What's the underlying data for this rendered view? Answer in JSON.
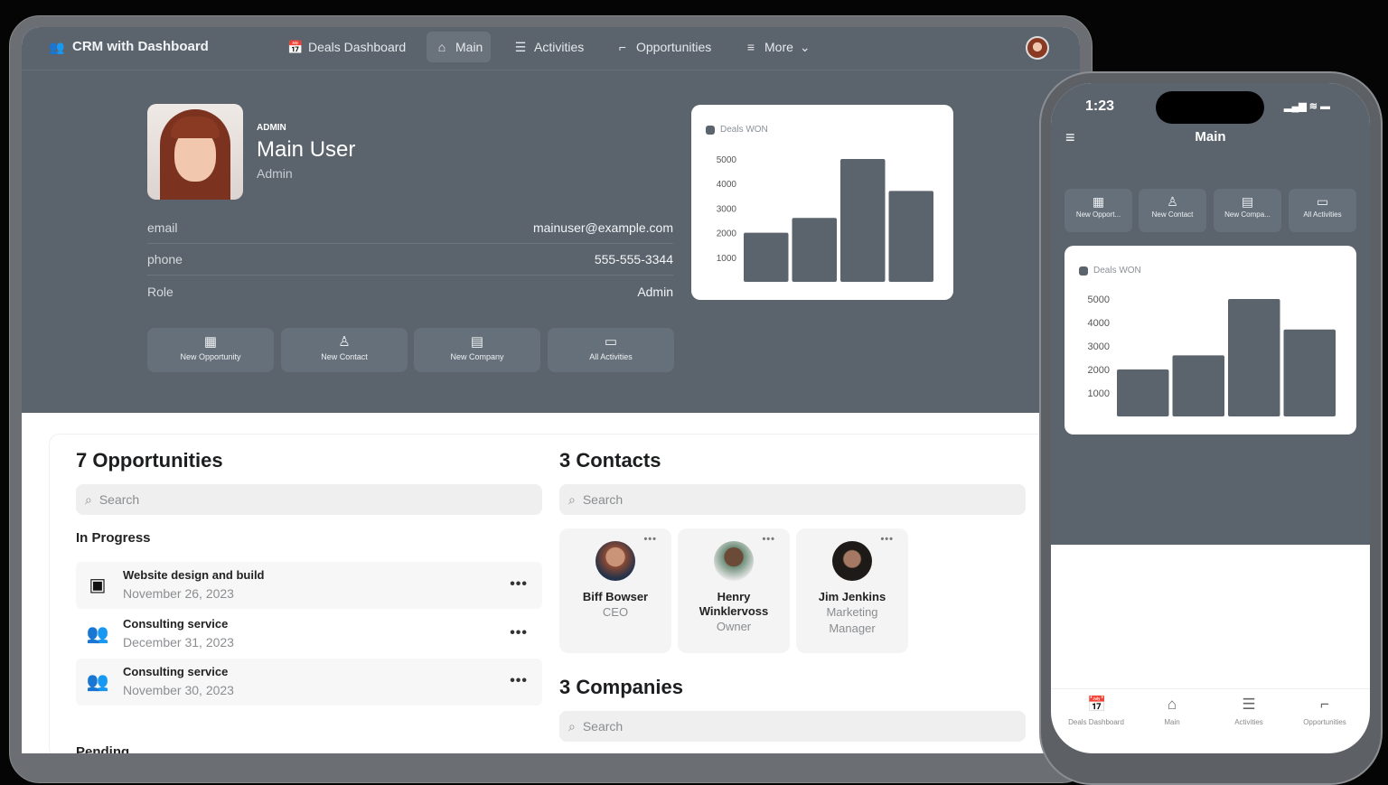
{
  "app": {
    "title": "CRM with Dashboard"
  },
  "nav": {
    "items": [
      {
        "label": "Deals Dashboard",
        "icon": "calendar-dollar-icon"
      },
      {
        "label": "Main",
        "icon": "home-icon",
        "active": true
      },
      {
        "label": "Activities",
        "icon": "checklist-icon"
      },
      {
        "label": "Opportunities",
        "icon": "stairs-icon"
      },
      {
        "label": "More",
        "icon": "menu-icon"
      }
    ]
  },
  "profile": {
    "tag": "ADMIN",
    "name": "Main User",
    "role": "Admin",
    "fields": [
      {
        "label": "email",
        "value": "mainuser@example.com"
      },
      {
        "label": "phone",
        "value": "555-555-3344"
      },
      {
        "label": "Role",
        "value": "Admin"
      }
    ]
  },
  "quick_actions": [
    {
      "label": "New Opportunity",
      "icon": "grid-icon"
    },
    {
      "label": "New Contact",
      "icon": "person-icon"
    },
    {
      "label": "New Company",
      "icon": "building-icon"
    },
    {
      "label": "All Activities",
      "icon": "calendar-icon"
    }
  ],
  "chart_data": {
    "type": "bar",
    "series": [
      {
        "name": "Deals WON",
        "values": [
          2000,
          2600,
          5000,
          3700
        ]
      }
    ],
    "yticks": [
      1000,
      2000,
      3000,
      4000,
      5000
    ],
    "ylim": [
      0,
      5000
    ],
    "grid": false,
    "legend": "top-left",
    "color": "#5b646d"
  },
  "opportunities": {
    "title": "7 Opportunities",
    "search_placeholder": "Search",
    "group": "In Progress",
    "next_group": "Pending",
    "items": [
      {
        "title": "Website design and build",
        "date": "November 26, 2023",
        "icon": "blueprint-icon"
      },
      {
        "title": "Consulting service",
        "date": "December 31, 2023",
        "icon": "people-icon"
      },
      {
        "title": "Consulting service",
        "date": "November 30, 2023",
        "icon": "people-icon"
      }
    ],
    "more": "•••"
  },
  "contacts": {
    "title": "3 Contacts",
    "search_placeholder": "Search",
    "items": [
      {
        "name": "Biff Bowser",
        "role": "CEO"
      },
      {
        "name": "Henry Winklervoss",
        "role": "Owner"
      },
      {
        "name": "Jim Jenkins",
        "role": "Marketing Manager"
      }
    ],
    "more": "•••"
  },
  "companies": {
    "title": "3 Companies",
    "search_placeholder": "Search"
  },
  "phone": {
    "time": "1:23",
    "title": "Main",
    "quick_actions": [
      "New Opport...",
      "New Contact",
      "New Compa...",
      "All Activities"
    ],
    "tabs": [
      "Deals Dashboard",
      "Main",
      "Activities",
      "Opportunities"
    ]
  }
}
